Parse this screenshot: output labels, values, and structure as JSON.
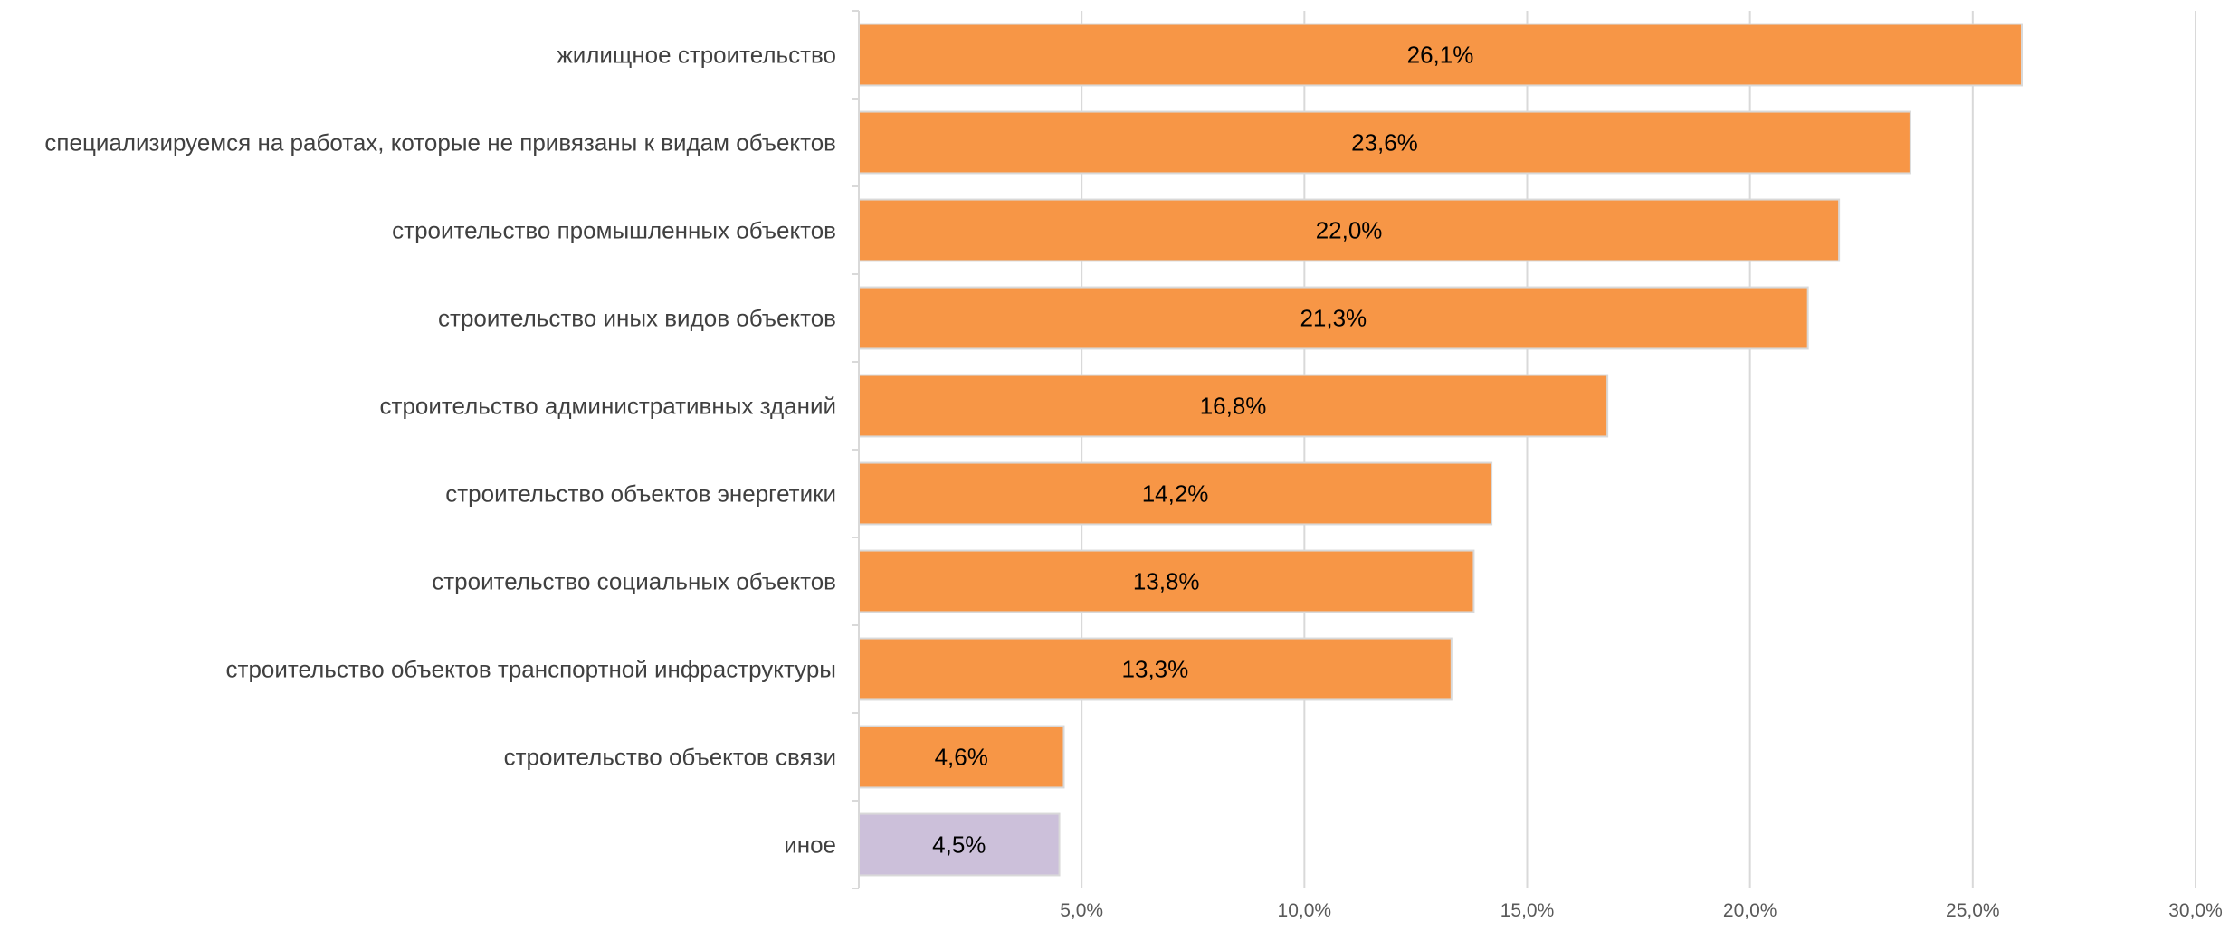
{
  "chart_data": {
    "type": "bar",
    "orientation": "horizontal",
    "categories": [
      "жилищное строительство",
      "специализируемся на работах, которые не привязаны к видам объектов",
      "строительство промышленных объектов",
      "строительство иных видов объектов",
      "строительство административных зданий",
      "строительство объектов энергетики",
      "строительство социальных объектов",
      "строительство объектов транспортной инфраструктуры",
      "строительство объектов связи",
      "иное"
    ],
    "values": [
      26.1,
      23.6,
      22.0,
      21.3,
      16.8,
      14.2,
      13.8,
      13.3,
      4.6,
      4.5
    ],
    "value_labels": [
      "26,1%",
      "23,6%",
      "22,0%",
      "21,3%",
      "16,8%",
      "14,2%",
      "13,8%",
      "13,3%",
      "4,6%",
      "4,5%"
    ],
    "bar_colors": [
      "#f79646",
      "#f79646",
      "#f79646",
      "#f79646",
      "#f79646",
      "#f79646",
      "#f79646",
      "#f79646",
      "#f79646",
      "#ccc0da"
    ],
    "xlim": [
      0,
      30
    ],
    "x_ticks": [
      5,
      10,
      15,
      20,
      25,
      30
    ],
    "x_tick_labels": [
      "5,0%",
      "10,0%",
      "15,0%",
      "20,0%",
      "25,0%",
      "30,0%"
    ],
    "grid": true,
    "legend": "none",
    "title": "",
    "xlabel": "",
    "ylabel": ""
  }
}
